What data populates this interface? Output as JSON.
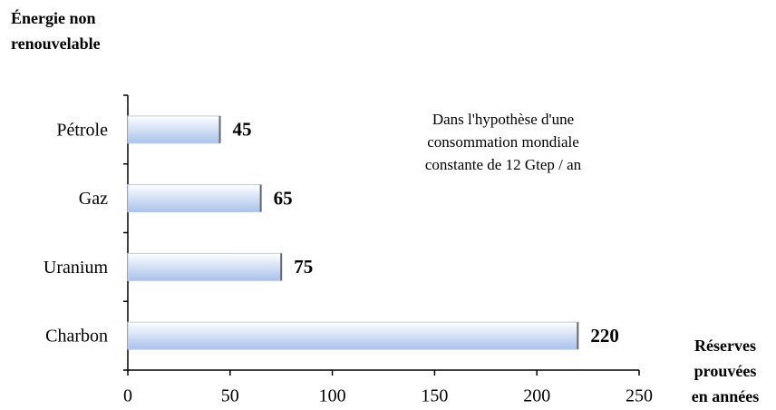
{
  "chart_data": {
    "type": "bar",
    "orientation": "horizontal",
    "ylabel": [
      "Énergie non",
      "renouvelable"
    ],
    "xlabel": [
      "Réserves",
      "prouvées",
      "en années"
    ],
    "annotation": [
      "Dans l'hypothèse d'une",
      "consommation mondiale",
      "constante de 12 Gtep / an"
    ],
    "categories": [
      "Pétrole",
      "Gaz",
      "Uranium",
      "Charbon"
    ],
    "values": [
      45,
      65,
      75,
      220
    ],
    "color": "#b8cdee",
    "xlim": [
      0,
      250
    ],
    "xticks": [
      0,
      50,
      100,
      150,
      200,
      250
    ],
    "grid": false
  }
}
